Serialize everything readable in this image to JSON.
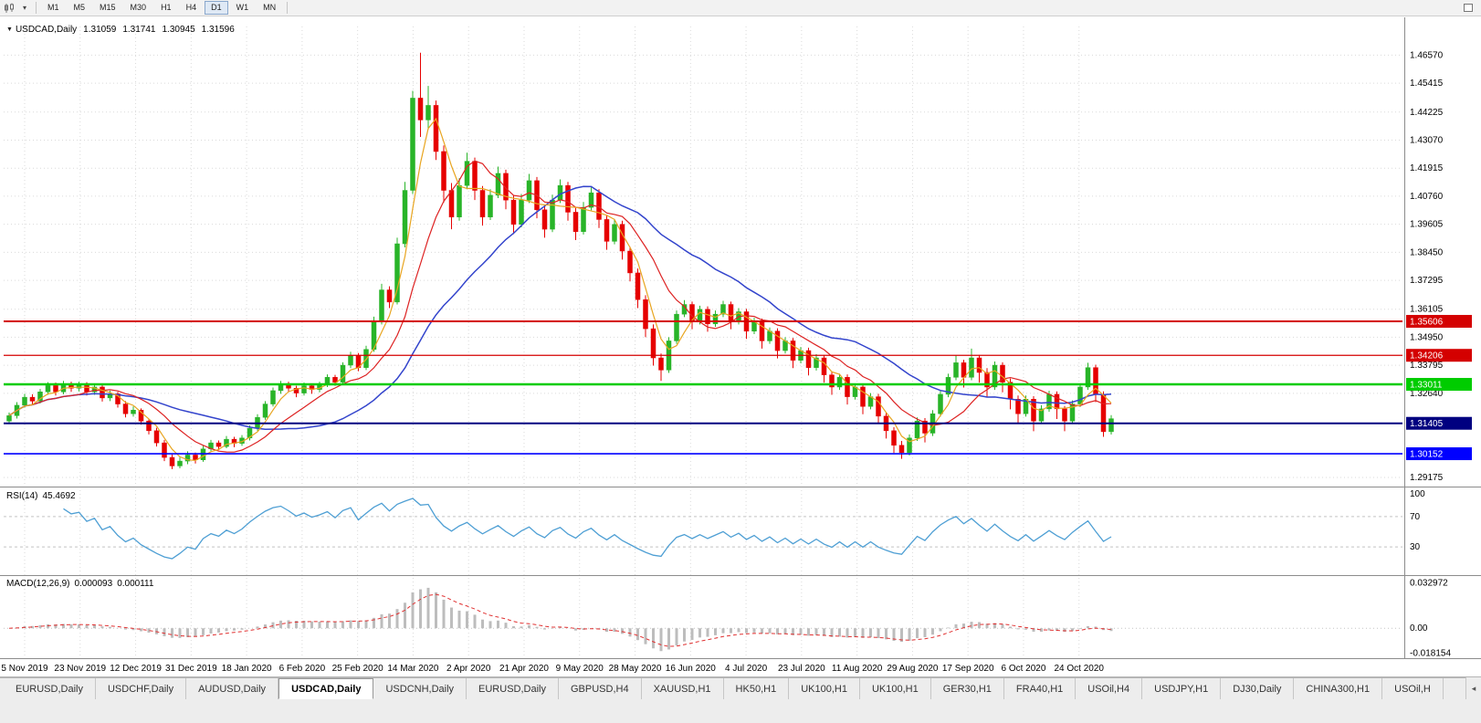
{
  "icons": {
    "title_caret": "▼",
    "toolbar_caret": "▾",
    "tab_scroll_left": "◂"
  },
  "toolbar": {
    "timeframes": [
      "M1",
      "M5",
      "M15",
      "M30",
      "H1",
      "H4",
      "D1",
      "W1",
      "MN"
    ],
    "active_timeframe": "D1"
  },
  "chart": {
    "title_symbol": "USDCAD,Daily",
    "ohlc": {
      "open": "1.31059",
      "high": "1.31741",
      "low": "1.30945",
      "close": "1.31596"
    },
    "price_axis_labels": [
      "1.46570",
      "1.45415",
      "1.44225",
      "1.43070",
      "1.41915",
      "1.40760",
      "1.39605",
      "1.38450",
      "1.37295",
      "1.36105",
      "1.34950",
      "1.33795",
      "1.32640",
      "1.29175"
    ],
    "colors": {
      "up": "#28b428",
      "down": "#e60000",
      "ma_fast": "#e8a520",
      "ma_mid": "#dd2222",
      "ma_slow": "#3344cc",
      "rsi_line": "#4e9fd4",
      "macd_hist": "#bdbdbd",
      "macd_signal": "#e03030",
      "grid": "#dadada"
    }
  },
  "indicators": {
    "rsi_label": "RSI(14)",
    "rsi_value": "45.4692",
    "macd_label": "MACD(12,26,9)",
    "macd_value": "0.000093",
    "macd_signal": "0.000111"
  },
  "chart_data": {
    "type": "candlestick",
    "symbol": "USDCAD",
    "timeframe": "Daily",
    "current_bar": {
      "open": 1.31059,
      "high": 1.31741,
      "low": 1.30945,
      "close": 1.31596
    },
    "y_range": [
      1.288,
      1.4775
    ],
    "macd_range": [
      -0.019,
      0.0345
    ],
    "rsi_axis_labels": [
      "100",
      "70",
      "30"
    ],
    "macd_axis_labels": [
      "0.032972",
      "0.00",
      "-0.018154"
    ],
    "x_labels": [
      "5 Nov 2019",
      "23 Nov 2019",
      "12 Dec 2019",
      "31 Dec 2019",
      "18 Jan 2020",
      "6 Feb 2020",
      "25 Feb 2020",
      "14 Mar 2020",
      "2 Apr 2020",
      "21 Apr 2020",
      "9 May 2020",
      "28 May 2020",
      "16 Jun 2020",
      "4 Jul 2020",
      "23 Jul 2020",
      "11 Aug 2020",
      "29 Aug 2020",
      "17 Sep 2020",
      "6 Oct 2020",
      "24 Oct 2020"
    ],
    "levels": [
      {
        "price": 1.35606,
        "label": "1.35606",
        "color": "#d40000",
        "lw": 2
      },
      {
        "price": 1.34206,
        "label": "1.34206",
        "color": "#d40000",
        "lw": 1.3
      },
      {
        "price": 1.33011,
        "label": "1.33011",
        "color": "#00cc00",
        "lw": 2.4
      },
      {
        "price": 1.31405,
        "label": "1.31405",
        "color": "#000080",
        "lw": 2
      },
      {
        "price": 1.30152,
        "label": "1.30152",
        "color": "#0000ff",
        "lw": 1.6
      }
    ],
    "candles": [
      [
        1.315,
        1.3185,
        1.3138,
        1.3172
      ],
      [
        1.3172,
        1.3228,
        1.316,
        1.3215
      ],
      [
        1.3215,
        1.3262,
        1.3205,
        1.3248
      ],
      [
        1.3248,
        1.326,
        1.3218,
        1.3232
      ],
      [
        1.3232,
        1.3282,
        1.3222,
        1.327
      ],
      [
        1.327,
        1.331,
        1.3258,
        1.3296
      ],
      [
        1.3296,
        1.3308,
        1.3255,
        1.327
      ],
      [
        1.327,
        1.3315,
        1.326,
        1.3302
      ],
      [
        1.3302,
        1.3312,
        1.327,
        1.3285
      ],
      [
        1.3285,
        1.3312,
        1.3272,
        1.33
      ],
      [
        1.33,
        1.331,
        1.3255,
        1.327
      ],
      [
        1.327,
        1.3302,
        1.3258,
        1.329
      ],
      [
        1.329,
        1.3298,
        1.323,
        1.3245
      ],
      [
        1.3245,
        1.3275,
        1.3232,
        1.3262
      ],
      [
        1.3262,
        1.327,
        1.3205,
        1.322
      ],
      [
        1.322,
        1.3232,
        1.3165,
        1.318
      ],
      [
        1.318,
        1.321,
        1.3168,
        1.3195
      ],
      [
        1.3195,
        1.3202,
        1.3135,
        1.315
      ],
      [
        1.315,
        1.316,
        1.3095,
        1.311
      ],
      [
        1.311,
        1.3122,
        1.3045,
        1.306
      ],
      [
        1.306,
        1.3072,
        1.2985,
        1.3
      ],
      [
        1.3,
        1.3012,
        1.2952,
        1.2965
      ],
      [
        1.2965,
        1.3,
        1.2955,
        1.2985
      ],
      [
        1.2985,
        1.3025,
        1.2972,
        1.301
      ],
      [
        1.301,
        1.302,
        1.2975,
        1.299
      ],
      [
        1.299,
        1.3048,
        1.2982,
        1.3035
      ],
      [
        1.3035,
        1.3072,
        1.3025,
        1.306
      ],
      [
        1.306,
        1.307,
        1.303,
        1.3045
      ],
      [
        1.3045,
        1.3088,
        1.3038,
        1.3075
      ],
      [
        1.3075,
        1.3085,
        1.3042,
        1.3058
      ],
      [
        1.3058,
        1.3092,
        1.3048,
        1.308
      ],
      [
        1.308,
        1.3132,
        1.307,
        1.312
      ],
      [
        1.312,
        1.3178,
        1.311,
        1.3165
      ],
      [
        1.3165,
        1.3232,
        1.3155,
        1.322
      ],
      [
        1.322,
        1.3288,
        1.321,
        1.3275
      ],
      [
        1.3275,
        1.3315,
        1.3262,
        1.3302
      ],
      [
        1.3302,
        1.3312,
        1.327,
        1.3285
      ],
      [
        1.3285,
        1.3295,
        1.3248,
        1.3265
      ],
      [
        1.3265,
        1.3308,
        1.3255,
        1.3295
      ],
      [
        1.3295,
        1.3305,
        1.3262,
        1.328
      ],
      [
        1.328,
        1.3312,
        1.3268,
        1.33
      ],
      [
        1.33,
        1.3342,
        1.329,
        1.333
      ],
      [
        1.333,
        1.334,
        1.3295,
        1.331
      ],
      [
        1.331,
        1.3392,
        1.33,
        1.338
      ],
      [
        1.338,
        1.3435,
        1.3368,
        1.342
      ],
      [
        1.342,
        1.343,
        1.3355,
        1.337
      ],
      [
        1.337,
        1.346,
        1.336,
        1.3445
      ],
      [
        1.3445,
        1.358,
        1.3435,
        1.356
      ],
      [
        1.356,
        1.3715,
        1.3548,
        1.369
      ],
      [
        1.369,
        1.3705,
        1.3615,
        1.364
      ],
      [
        1.364,
        1.3905,
        1.363,
        1.388
      ],
      [
        1.388,
        1.4135,
        1.3865,
        1.41
      ],
      [
        1.41,
        1.451,
        1.4085,
        1.448
      ],
      [
        1.448,
        1.4667,
        1.432,
        1.439
      ],
      [
        1.439,
        1.453,
        1.435,
        1.445
      ],
      [
        1.445,
        1.447,
        1.4225,
        1.426
      ],
      [
        1.426,
        1.4285,
        1.405,
        1.41
      ],
      [
        1.41,
        1.413,
        1.394,
        1.399
      ],
      [
        1.399,
        1.415,
        1.3975,
        1.412
      ],
      [
        1.412,
        1.4255,
        1.4105,
        1.422
      ],
      [
        1.422,
        1.4235,
        1.406,
        1.41
      ],
      [
        1.41,
        1.4118,
        1.3955,
        1.399
      ],
      [
        1.399,
        1.4105,
        1.3978,
        1.408
      ],
      [
        1.408,
        1.4198,
        1.4068,
        1.417
      ],
      [
        1.417,
        1.4185,
        1.4022,
        1.406
      ],
      [
        1.406,
        1.4078,
        1.392,
        1.396
      ],
      [
        1.396,
        1.4085,
        1.3948,
        1.406
      ],
      [
        1.406,
        1.4168,
        1.4048,
        1.414
      ],
      [
        1.414,
        1.4155,
        1.3985,
        1.402
      ],
      [
        1.402,
        1.4038,
        1.3905,
        1.394
      ],
      [
        1.394,
        1.4082,
        1.3928,
        1.406
      ],
      [
        1.406,
        1.4145,
        1.4048,
        1.412
      ],
      [
        1.412,
        1.4135,
        1.3975,
        1.401
      ],
      [
        1.401,
        1.4028,
        1.3895,
        1.393
      ],
      [
        1.393,
        1.4052,
        1.3918,
        1.403
      ],
      [
        1.403,
        1.4112,
        1.4018,
        1.409
      ],
      [
        1.409,
        1.4105,
        1.3945,
        1.398
      ],
      [
        1.398,
        1.3998,
        1.3855,
        1.389
      ],
      [
        1.389,
        1.3982,
        1.3878,
        1.396
      ],
      [
        1.396,
        1.3975,
        1.3815,
        1.385
      ],
      [
        1.385,
        1.3868,
        1.3725,
        1.376
      ],
      [
        1.376,
        1.3778,
        1.3615,
        1.365
      ],
      [
        1.365,
        1.3668,
        1.3495,
        1.353
      ],
      [
        1.353,
        1.3548,
        1.3378,
        1.341
      ],
      [
        1.341,
        1.3428,
        1.3315,
        1.336
      ],
      [
        1.336,
        1.3495,
        1.3348,
        1.348
      ],
      [
        1.348,
        1.3605,
        1.3468,
        1.359
      ],
      [
        1.359,
        1.3648,
        1.3578,
        1.363
      ],
      [
        1.363,
        1.3642,
        1.3528,
        1.356
      ],
      [
        1.356,
        1.3625,
        1.3548,
        1.361
      ],
      [
        1.361,
        1.3622,
        1.3518,
        1.355
      ],
      [
        1.355,
        1.3605,
        1.3538,
        1.359
      ],
      [
        1.359,
        1.3645,
        1.3578,
        1.363
      ],
      [
        1.363,
        1.3642,
        1.3528,
        1.356
      ],
      [
        1.356,
        1.3615,
        1.3548,
        1.36
      ],
      [
        1.36,
        1.3612,
        1.3488,
        1.352
      ],
      [
        1.352,
        1.3575,
        1.3508,
        1.356
      ],
      [
        1.356,
        1.3572,
        1.3448,
        1.348
      ],
      [
        1.348,
        1.3535,
        1.3468,
        1.352
      ],
      [
        1.352,
        1.3532,
        1.3408,
        1.344
      ],
      [
        1.344,
        1.3495,
        1.3428,
        1.348
      ],
      [
        1.348,
        1.3492,
        1.3368,
        1.34
      ],
      [
        1.34,
        1.3455,
        1.3388,
        1.344
      ],
      [
        1.344,
        1.3452,
        1.3338,
        1.337
      ],
      [
        1.337,
        1.3425,
        1.3358,
        1.341
      ],
      [
        1.341,
        1.3422,
        1.3308,
        1.334
      ],
      [
        1.334,
        1.3355,
        1.3258,
        1.329
      ],
      [
        1.329,
        1.3345,
        1.3278,
        1.333
      ],
      [
        1.333,
        1.3342,
        1.3218,
        1.325
      ],
      [
        1.325,
        1.3305,
        1.3238,
        1.329
      ],
      [
        1.329,
        1.3302,
        1.3178,
        1.321
      ],
      [
        1.321,
        1.3265,
        1.3198,
        1.325
      ],
      [
        1.325,
        1.3262,
        1.3138,
        1.317
      ],
      [
        1.317,
        1.3185,
        1.3078,
        1.311
      ],
      [
        1.311,
        1.3125,
        1.3018,
        1.305
      ],
      [
        1.305,
        1.3068,
        1.2994,
        1.302
      ],
      [
        1.302,
        1.3095,
        1.3008,
        1.308
      ],
      [
        1.308,
        1.3165,
        1.3068,
        1.315
      ],
      [
        1.315,
        1.3162,
        1.3062,
        1.31
      ],
      [
        1.31,
        1.3195,
        1.3088,
        1.318
      ],
      [
        1.318,
        1.3275,
        1.3168,
        1.326
      ],
      [
        1.326,
        1.3345,
        1.3248,
        1.333
      ],
      [
        1.333,
        1.342,
        1.3318,
        1.339
      ],
      [
        1.339,
        1.3402,
        1.3288,
        1.333
      ],
      [
        1.333,
        1.3448,
        1.3318,
        1.341
      ],
      [
        1.341,
        1.3422,
        1.3308,
        1.335
      ],
      [
        1.335,
        1.3368,
        1.3248,
        1.329
      ],
      [
        1.329,
        1.3395,
        1.3278,
        1.338
      ],
      [
        1.338,
        1.3392,
        1.3268,
        1.331
      ],
      [
        1.331,
        1.3325,
        1.3198,
        1.324
      ],
      [
        1.324,
        1.3255,
        1.3138,
        1.318
      ],
      [
        1.318,
        1.3255,
        1.3168,
        1.324
      ],
      [
        1.324,
        1.3252,
        1.3108,
        1.315
      ],
      [
        1.315,
        1.3215,
        1.3138,
        1.32
      ],
      [
        1.32,
        1.3275,
        1.3188,
        1.326
      ],
      [
        1.326,
        1.3272,
        1.3158,
        1.32
      ],
      [
        1.32,
        1.3212,
        1.3108,
        1.315
      ],
      [
        1.315,
        1.3235,
        1.3138,
        1.322
      ],
      [
        1.322,
        1.3305,
        1.3208,
        1.329
      ],
      [
        1.329,
        1.339,
        1.3278,
        1.337
      ],
      [
        1.337,
        1.3382,
        1.3228,
        1.326
      ],
      [
        1.326,
        1.3272,
        1.3085,
        1.3106
      ],
      [
        1.3106,
        1.31741,
        1.30945,
        1.31596
      ]
    ]
  },
  "tabs": {
    "active_index": 3,
    "items": [
      "EURUSD,Daily",
      "USDCHF,Daily",
      "AUDUSD,Daily",
      "USDCAD,Daily",
      "USDCNH,Daily",
      "EURUSD,Daily",
      "GBPUSD,H4",
      "XAUUSD,H1",
      "HK50,H1",
      "UK100,H1",
      "UK100,H1",
      "GER30,H1",
      "FRA40,H1",
      "USOil,H4",
      "USDJPY,H1",
      "DJ30,Daily",
      "CHINA300,H1",
      "USOil,H"
    ]
  }
}
